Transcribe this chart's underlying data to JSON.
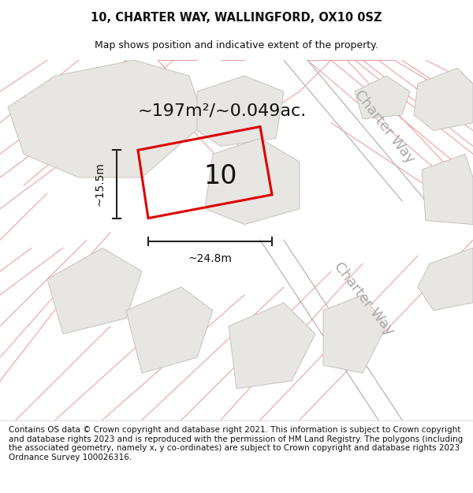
{
  "title_line1": "10, CHARTER WAY, WALLINGFORD, OX10 0SZ",
  "title_line2": "Map shows position and indicative extent of the property.",
  "footer_text": "Contains OS data © Crown copyright and database right 2021. This information is subject to Crown copyright and database rights 2023 and is reproduced with the permission of HM Land Registry. The polygons (including the associated geometry, namely x, y co-ordinates) are subject to Crown copyright and database rights 2023 Ordnance Survey 100026316.",
  "area_label": "~197m²/~0.049ac.",
  "width_label": "~24.8m",
  "height_label": "~15.5m",
  "property_number": "10",
  "map_bg": "#ffffff",
  "plot_color": "#dd0000",
  "building_fill": "#e8e6e2",
  "building_edge": "#c0bcb8",
  "road_line_color": "#f0a0a0",
  "dim_line_color": "#222222",
  "road_label_color": "#aaaaaa",
  "title_fontsize": 10.5,
  "subtitle_fontsize": 9,
  "footer_fontsize": 7.5,
  "area_fontsize": 16,
  "number_fontsize": 24,
  "road_label_fontsize": 13,
  "dim_fontsize": 10
}
